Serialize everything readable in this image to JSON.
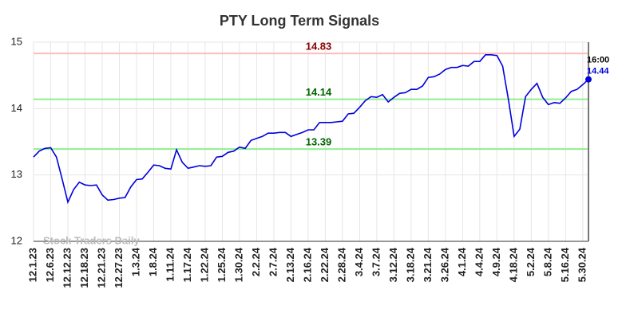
{
  "chart_data": {
    "type": "line",
    "title": "PTY Long Term Signals",
    "watermark": "Stock Traders Daily",
    "categories": [
      "12.1.23",
      null,
      null,
      "12.6.23",
      null,
      null,
      "12.12.23",
      null,
      null,
      "12.18.23",
      null,
      null,
      "12.21.23",
      null,
      null,
      "12.27.23",
      null,
      null,
      "1.3.24",
      null,
      null,
      "1.8.24",
      null,
      null,
      "1.11.24",
      null,
      null,
      "1.17.24",
      null,
      null,
      "1.22.24",
      null,
      null,
      "1.25.24",
      null,
      null,
      "1.30.24",
      null,
      null,
      "2.2.24",
      null,
      null,
      "2.7.24",
      null,
      null,
      "2.13.24",
      null,
      null,
      "2.16.24",
      null,
      null,
      "2.22.24",
      null,
      null,
      "2.28.24",
      null,
      null,
      "3.4.24",
      null,
      null,
      "3.7.24",
      null,
      null,
      "3.12.24",
      null,
      null,
      "3.18.24",
      null,
      null,
      "3.21.24",
      null,
      null,
      "3.26.24",
      null,
      null,
      "4.1.24",
      null,
      null,
      "4.4.24",
      null,
      null,
      "4.9.24",
      null,
      null,
      "4.18.24",
      null,
      null,
      "5.2.24",
      null,
      null,
      "5.8.24",
      null,
      null,
      "5.16.24",
      null,
      null,
      "5.30.24",
      null
    ],
    "series": [
      {
        "color": "#0000dd",
        "values": [
          13.27,
          13.36,
          13.4,
          13.41,
          13.27,
          12.94,
          12.59,
          12.78,
          12.89,
          12.85,
          12.84,
          12.85,
          12.7,
          12.62,
          12.63,
          12.65,
          12.66,
          12.82,
          12.93,
          12.94,
          13.04,
          13.15,
          13.14,
          13.1,
          13.09,
          13.38,
          13.19,
          13.1,
          13.12,
          13.14,
          13.13,
          13.14,
          13.27,
          13.28,
          13.34,
          13.36,
          13.42,
          13.4,
          13.52,
          13.55,
          13.58,
          13.63,
          13.63,
          13.64,
          13.64,
          13.58,
          13.61,
          13.64,
          13.68,
          13.68,
          13.79,
          13.79,
          13.79,
          13.8,
          13.81,
          13.92,
          13.93,
          14.02,
          14.12,
          14.18,
          14.17,
          14.21,
          14.1,
          14.17,
          14.23,
          14.24,
          14.29,
          14.29,
          14.34,
          14.47,
          14.48,
          14.52,
          14.59,
          14.62,
          14.62,
          14.65,
          14.64,
          14.71,
          14.71,
          14.81,
          14.81,
          14.8,
          14.64,
          14.14,
          13.58,
          13.69,
          14.18,
          14.29,
          14.38,
          14.17,
          14.06,
          14.09,
          14.08,
          14.16,
          14.26,
          14.29,
          14.36,
          14.44
        ]
      }
    ],
    "last_time": "16:00",
    "hlines": [
      {
        "value": 14.83,
        "color": "#ffbbbb",
        "text_color": "#8b0000"
      },
      {
        "value": 14.14,
        "color": "#90ee90",
        "text_color": "#006400"
      },
      {
        "value": 13.39,
        "color": "#90ee90",
        "text_color": "#006400"
      }
    ],
    "ylim": [
      12,
      15
    ],
    "yticks": [
      12,
      13,
      14,
      15
    ],
    "grid": true
  }
}
